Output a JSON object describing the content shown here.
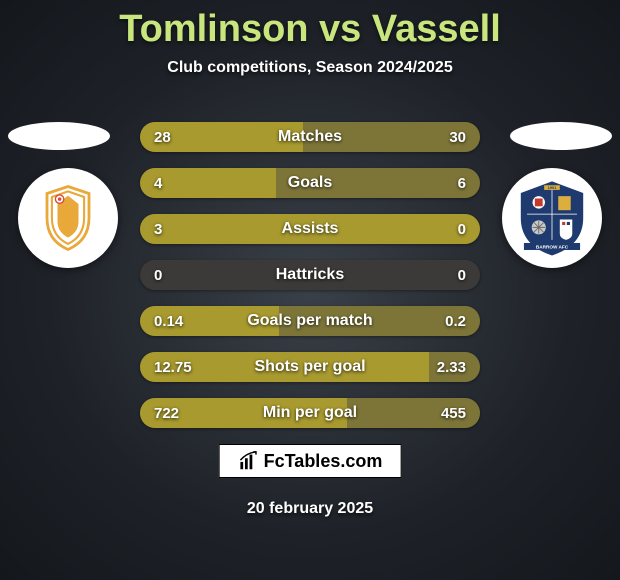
{
  "header": {
    "title": "Tomlinson vs Vassell",
    "subtitle": "Club competitions, Season 2024/2025"
  },
  "colors": {
    "title": "#c9e67e",
    "bar_left": "#a89a2e",
    "bar_right": "#7d7538",
    "bar_bg": "#3c3a38"
  },
  "stats": [
    {
      "label": "Matches",
      "left_val": "28",
      "right_val": "30",
      "left_pct": 48,
      "right_pct": 52
    },
    {
      "label": "Goals",
      "left_val": "4",
      "right_val": "6",
      "left_pct": 40,
      "right_pct": 60
    },
    {
      "label": "Assists",
      "left_val": "3",
      "right_val": "0",
      "left_pct": 100,
      "right_pct": 0
    },
    {
      "label": "Hattricks",
      "left_val": "0",
      "right_val": "0",
      "left_pct": 0,
      "right_pct": 0
    },
    {
      "label": "Goals per match",
      "left_val": "0.14",
      "right_val": "0.2",
      "left_pct": 41,
      "right_pct": 59
    },
    {
      "label": "Shots per goal",
      "left_val": "12.75",
      "right_val": "2.33",
      "left_pct": 85,
      "right_pct": 15
    },
    {
      "label": "Min per goal",
      "left_val": "722",
      "right_val": "455",
      "left_pct": 61,
      "right_pct": 39
    }
  ],
  "watermark": {
    "text": "FcTables.com"
  },
  "footer": {
    "date": "20 february 2025"
  }
}
